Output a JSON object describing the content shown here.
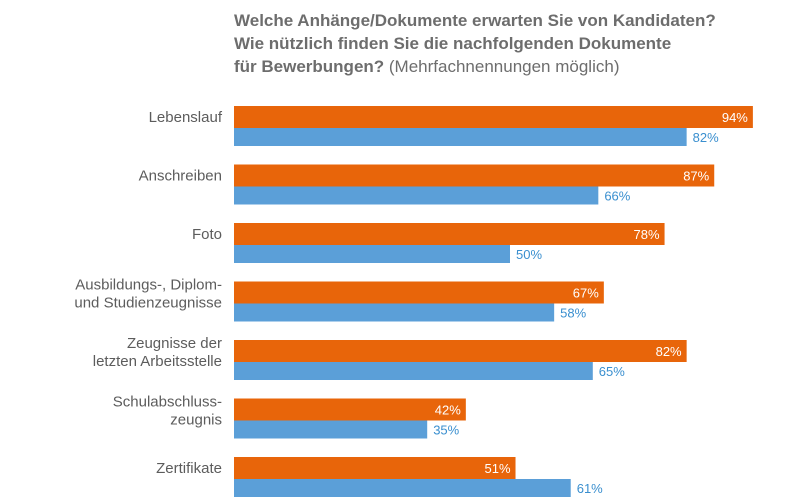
{
  "title": {
    "line1": "Welche Anhänge/Dokumente erwarten Sie von Kandidaten?",
    "line2": "Wie nützlich finden Sie die nachfolgenden Dokumente",
    "line3_bold": "für Bewerbungen?",
    "line3_normal": " (Mehrfachnennungen möglich)"
  },
  "colors": {
    "series1": "#e8650a",
    "series2": "#5b9fd8",
    "label2": "#3a8fcf"
  },
  "chart_data": {
    "type": "bar",
    "orientation": "horizontal",
    "categories": [
      [
        "Lebenslauf"
      ],
      [
        "Anschreiben"
      ],
      [
        "Foto"
      ],
      [
        "Ausbildungs-, Diplom-",
        "und Studienzeugnisse"
      ],
      [
        "Zeugnisse der",
        "letzten Arbeitsstelle"
      ],
      [
        "Schulabschluss-",
        "zeugnis"
      ],
      [
        "Zertifikate"
      ]
    ],
    "series": [
      {
        "values": [
          94,
          87,
          78,
          67,
          82,
          42,
          51
        ],
        "color": "#e8650a"
      },
      {
        "values": [
          82,
          66,
          50,
          58,
          65,
          35,
          61
        ],
        "color": "#5b9fd8"
      }
    ],
    "value_suffix": "%",
    "xlim": [
      0,
      100
    ],
    "grid": false,
    "legend": "none"
  }
}
